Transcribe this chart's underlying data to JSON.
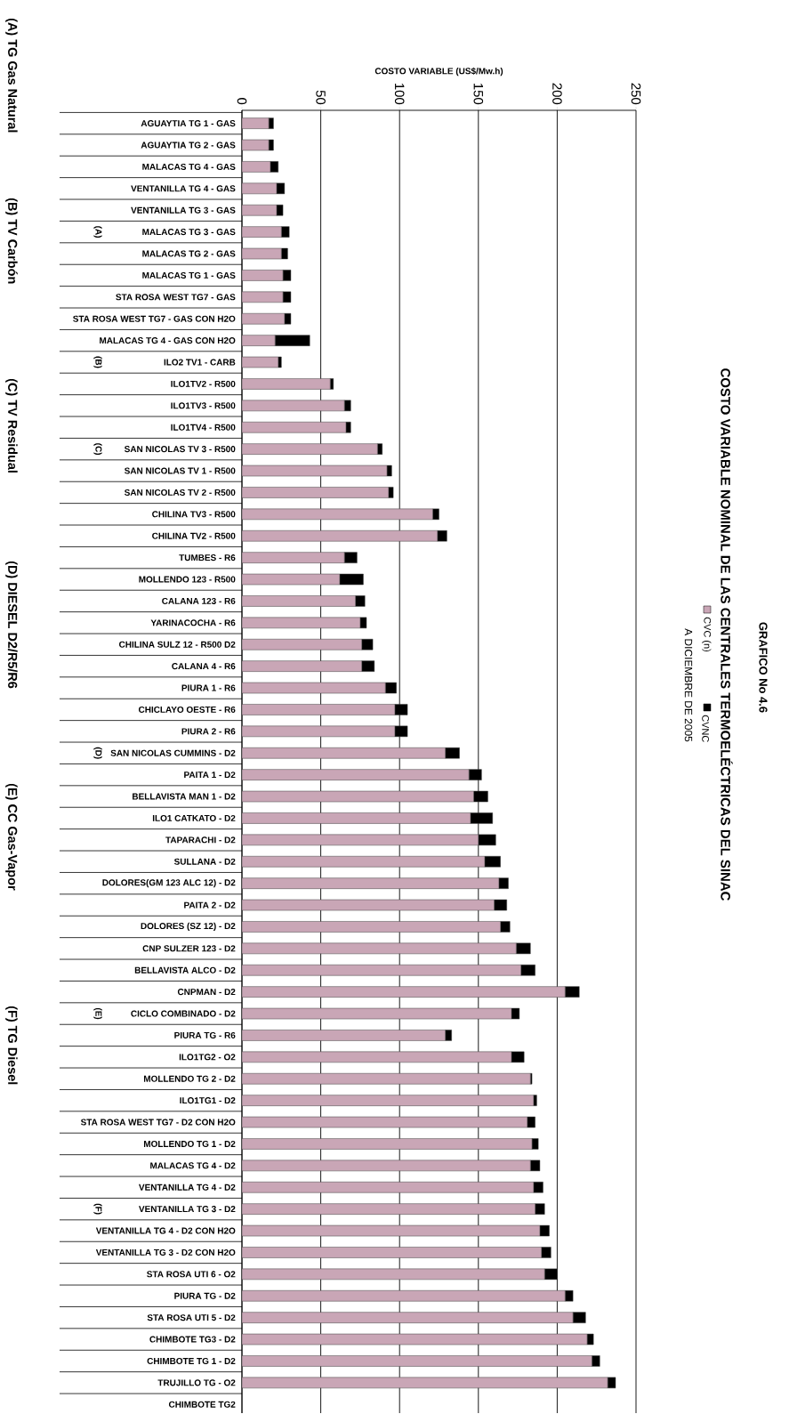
{
  "chart_data": {
    "type": "bar",
    "orientation": "horizontal",
    "stacked": true,
    "title": "GRAFICO No 4.6",
    "subtitle": "COSTO VARIABLE NOMINAL DE LAS CENTRALES TERMOELÉCTRICAS DEL SINAC",
    "annotations": [
      "A DICIEMBRE DE 2005",
      "(A) TG Gas Natural",
      "(B) TV Carbón",
      "(C) TV Residual",
      "(D) DIESEL D2/R5/R6",
      "(E) CC Gas-Vapor",
      "(F) TG Diesel",
      "(A)",
      "(B)",
      "(C)",
      "(D)",
      "(E)",
      "(F)"
    ],
    "xlabel": "COSTO VARIABLE (US$/Mw.h)",
    "categories": [
      "AGUAYTIA TG 1 - GAS",
      "AGUAYTIA TG 2 - GAS",
      "MALACAS TG 4 - GAS",
      "VENTANILLA TG 4 - GAS",
      "VENTANILLA TG 3 - GAS",
      "MALACAS TG 3 - GAS",
      "MALACAS TG 2 - GAS",
      "MALACAS TG 1 - GAS",
      "STA ROSA WEST TG7 - GAS",
      "STA ROSA WEST TG7 - GAS CON H2O",
      "MALACAS TG 4 - GAS CON H2O",
      "ILO2 TV1 - CARB",
      "ILO1TV2 - R500",
      "ILO1TV3 - R500",
      "ILO1TV4 - R500",
      "SAN NICOLAS TV 3 - R500",
      "SAN NICOLAS TV 1 - R500",
      "SAN NICOLAS TV 2 - R500",
      "CHILINA TV3 - R500",
      "CHILINA TV2 - R500",
      "TUMBES - R6",
      "MOLLENDO 123 - R500",
      "CALANA 123 - R6",
      "YARINACOCHA - R6",
      "CHILINA SULZ 12 - R500 D2",
      "CALANA 4 - R6",
      "PIURA 1 - R6",
      "CHICLAYO OESTE - R6",
      "PIURA 2 - R6",
      "SAN NICOLAS CUMMINS - D2",
      "PAITA 1 - D2",
      "BELLAVISTA MAN 1 - D2",
      "ILO1 CATKATO - D2",
      "TAPARACHI - D2",
      "SULLANA - D2",
      "DOLORES(GM 123 ALC 12) - D2",
      "PAITA 2 - D2",
      "DOLORES (SZ 12) - D2",
      "CNP SULZER 123 - D2",
      "BELLAVISTA ALCO - D2",
      "CNPMAN - D2",
      "CICLO COMBINADO - D2",
      "PIURA TG - R6",
      "ILO1TG2 - O2",
      "MOLLENDO TG 2 - D2",
      "ILO1TG1 - D2",
      "STA ROSA WEST TG7 - D2 CON H2O",
      "MOLLENDO TG 1 - D2",
      "MALACAS TG 4 - D2",
      "VENTANILLA TG 4 - D2",
      "VENTANILLA TG 3 - D2",
      "VENTANILLA TG 4 - D2 CON H2O",
      "VENTANILLA TG 3 - D2 CON H2O",
      "STA ROSA UTI 6 - O2",
      "PIURA TG - D2",
      "STA ROSA UTI 5 - D2",
      "CHIMBOTE TG3 - D2",
      "CHIMBOTE TG 1 - D2",
      "TRUJILLO TG - O2",
      "CHIMBOTE TG2"
    ],
    "series": [
      {
        "name": "CVC (n)",
        "color": "#c9a6b6",
        "values": [
          17,
          17,
          18,
          22,
          22,
          25,
          25,
          26,
          26,
          27,
          21,
          23,
          56,
          65,
          66,
          86,
          92,
          93,
          121,
          124,
          65,
          62,
          72,
          75,
          76,
          76,
          91,
          97,
          97,
          129,
          144,
          147,
          145,
          150,
          154,
          163,
          160,
          164,
          174,
          177,
          205,
          171,
          129,
          171,
          183,
          185,
          181,
          184,
          183,
          185,
          186,
          189,
          190,
          192,
          205,
          210,
          219,
          222,
          232,
          null
        ]
      },
      {
        "name": "CVNC",
        "color": "#000000",
        "values": [
          3,
          3,
          5,
          5,
          4,
          5,
          4,
          5,
          5,
          4,
          22,
          2,
          2,
          4,
          3,
          3,
          3,
          3,
          4,
          6,
          8,
          15,
          6,
          4,
          7,
          8,
          7,
          8,
          8,
          9,
          8,
          9,
          14,
          11,
          10,
          6,
          8,
          6,
          9,
          9,
          9,
          5,
          4,
          8,
          1,
          2,
          5,
          4,
          6,
          6,
          6,
          6,
          6,
          8,
          5,
          8,
          4,
          5,
          5,
          null
        ]
      }
    ],
    "xlim": [
      0,
      250
    ],
    "xticks": [
      0,
      50,
      100,
      150,
      200,
      250
    ],
    "grid": "x",
    "legend": "right"
  }
}
